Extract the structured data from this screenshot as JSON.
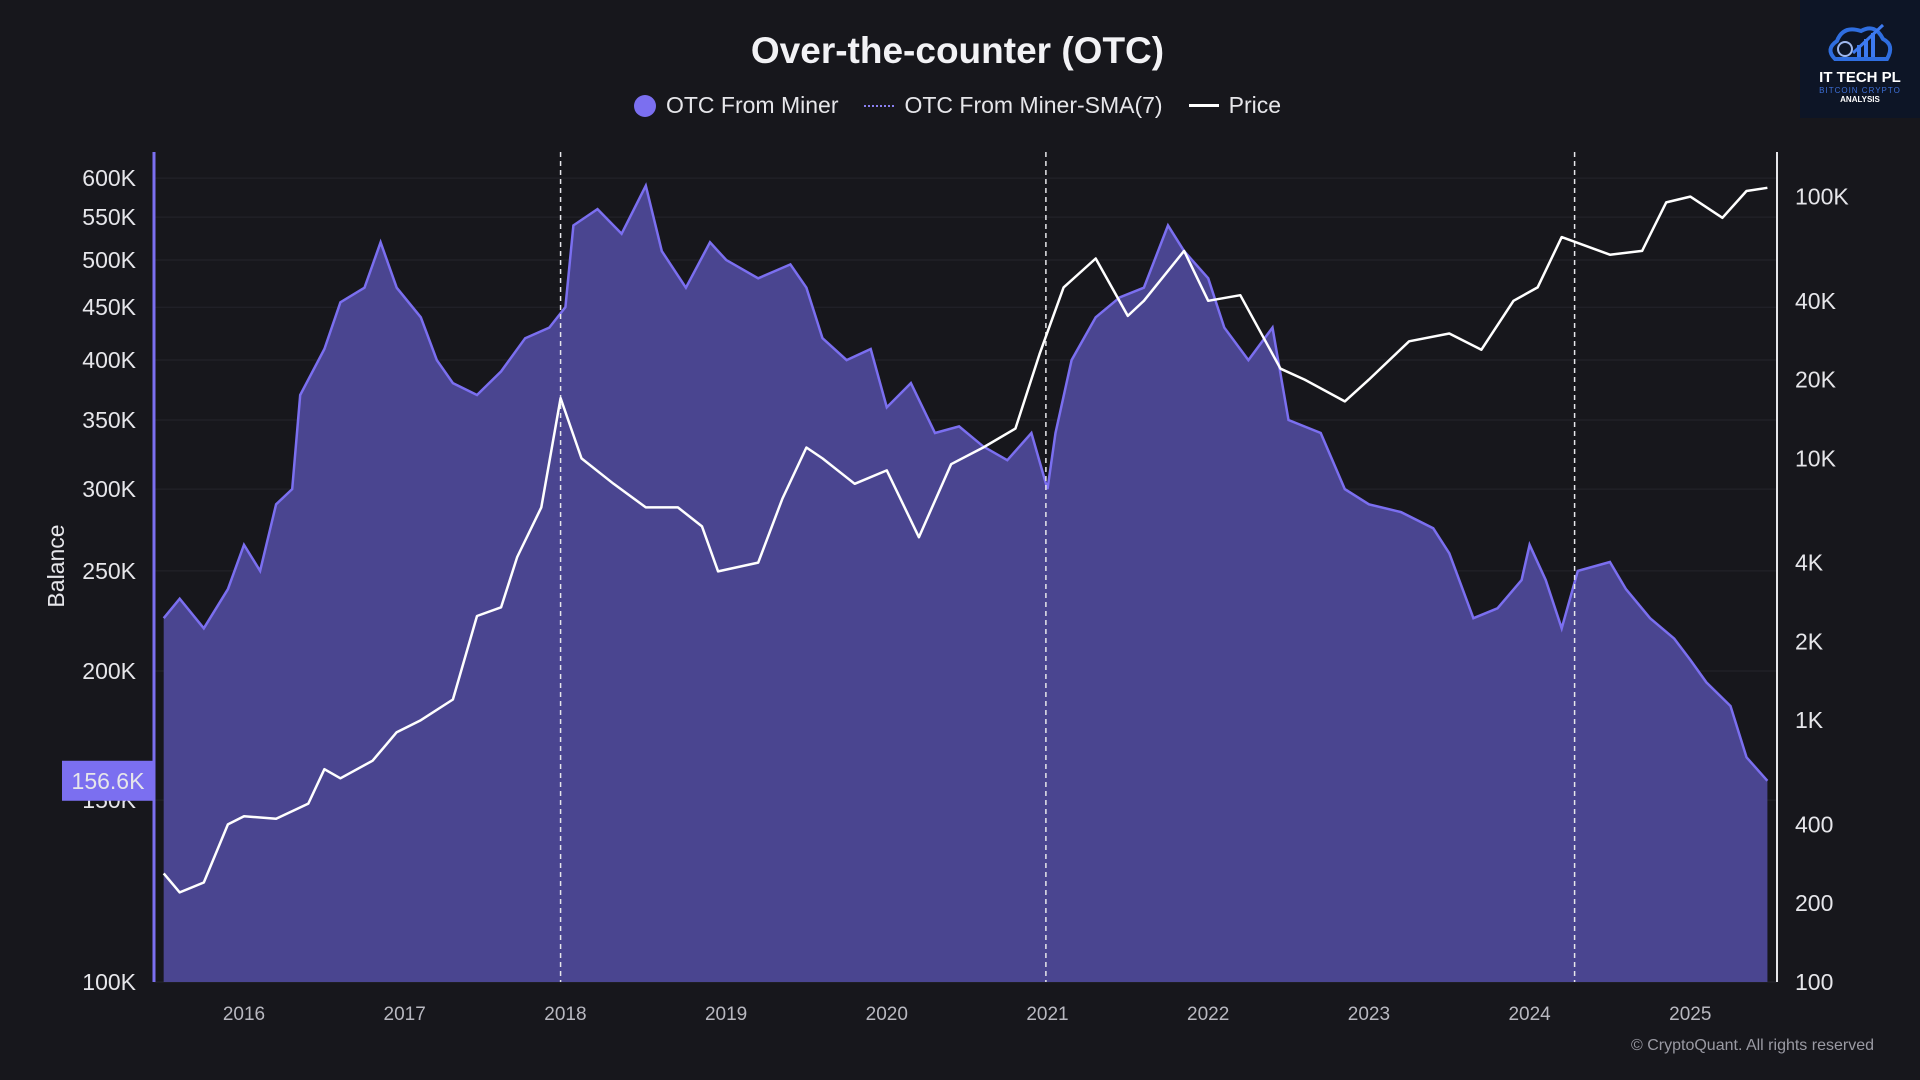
{
  "chart_data": {
    "type": "area",
    "title": "Over-the-counter (OTC)",
    "ylabel": "Balance",
    "y_scale": "log",
    "ylim": [
      100000,
      636000
    ],
    "y2_scale": "log",
    "y2lim": [
      100,
      148000
    ],
    "xlim": [
      2015.5,
      2025.48
    ],
    "x_ticks": [
      "2016",
      "2017",
      "2018",
      "2019",
      "2020",
      "2021",
      "2022",
      "2023",
      "2024",
      "2025"
    ],
    "y_ticks": [
      "600K",
      "550K",
      "500K",
      "450K",
      "400K",
      "350K",
      "300K",
      "250K",
      "200K",
      "150K",
      "100K"
    ],
    "y_tick_values": [
      600000,
      550000,
      500000,
      450000,
      400000,
      350000,
      300000,
      250000,
      200000,
      150000,
      100000
    ],
    "y2_ticks": [
      "100K",
      "40K",
      "20K",
      "10K",
      "4K",
      "2K",
      "1K",
      "400",
      "200",
      "100"
    ],
    "y2_tick_values": [
      100000,
      40000,
      20000,
      10000,
      4000,
      2000,
      1000,
      400,
      200,
      100
    ],
    "vertical_markers": [
      2017.97,
      2020.99,
      2024.28
    ],
    "current_value_label": "156.6K",
    "legend_position": "top-center",
    "grid": true,
    "series": [
      {
        "name": "OTC From Miner",
        "axis": "left",
        "color": "#7b6ff0",
        "fill": "#4a4590",
        "x": [
          2015.5,
          2015.6,
          2015.75,
          2015.9,
          2016.0,
          2016.1,
          2016.2,
          2016.3,
          2016.35,
          2016.5,
          2016.6,
          2016.75,
          2016.85,
          2016.95,
          2017.1,
          2017.2,
          2017.3,
          2017.45,
          2017.6,
          2017.75,
          2017.9,
          2018.0,
          2018.05,
          2018.2,
          2018.35,
          2018.5,
          2018.6,
          2018.75,
          2018.9,
          2019.0,
          2019.2,
          2019.4,
          2019.5,
          2019.6,
          2019.75,
          2019.9,
          2020.0,
          2020.15,
          2020.3,
          2020.45,
          2020.6,
          2020.75,
          2020.9,
          2021.0,
          2021.05,
          2021.15,
          2021.3,
          2021.45,
          2021.6,
          2021.75,
          2021.85,
          2022.0,
          2022.1,
          2022.25,
          2022.4,
          2022.5,
          2022.7,
          2022.85,
          2023.0,
          2023.2,
          2023.4,
          2023.5,
          2023.65,
          2023.8,
          2023.95,
          2024.0,
          2024.1,
          2024.2,
          2024.3,
          2024.5,
          2024.6,
          2024.75,
          2024.9,
          2025.0,
          2025.1,
          2025.25,
          2025.35,
          2025.48
        ],
        "values": [
          225000,
          235000,
          220000,
          240000,
          265000,
          250000,
          290000,
          300000,
          370000,
          410000,
          455000,
          470000,
          520000,
          470000,
          440000,
          400000,
          380000,
          370000,
          390000,
          420000,
          430000,
          450000,
          540000,
          560000,
          530000,
          590000,
          510000,
          470000,
          520000,
          500000,
          480000,
          495000,
          470000,
          420000,
          400000,
          410000,
          360000,
          380000,
          340000,
          345000,
          330000,
          320000,
          340000,
          300000,
          340000,
          400000,
          440000,
          460000,
          470000,
          540000,
          510000,
          480000,
          430000,
          400000,
          430000,
          350000,
          340000,
          300000,
          290000,
          285000,
          275000,
          260000,
          225000,
          230000,
          245000,
          265000,
          245000,
          220000,
          250000,
          255000,
          240000,
          225000,
          215000,
          205000,
          195000,
          185000,
          165000,
          156600
        ]
      },
      {
        "name": "OTC From Miner-SMA(7)",
        "axis": "left",
        "color": "#8a80f0",
        "values": []
      },
      {
        "name": "Price",
        "axis": "right",
        "color": "#ffffff",
        "x": [
          2015.5,
          2015.6,
          2015.75,
          2015.9,
          2016.0,
          2016.2,
          2016.4,
          2016.5,
          2016.6,
          2016.8,
          2016.95,
          2017.1,
          2017.3,
          2017.45,
          2017.6,
          2017.7,
          2017.85,
          2017.97,
          2018.1,
          2018.3,
          2018.5,
          2018.7,
          2018.85,
          2018.95,
          2019.2,
          2019.35,
          2019.5,
          2019.6,
          2019.8,
          2020.0,
          2020.2,
          2020.4,
          2020.6,
          2020.8,
          2020.95,
          2021.1,
          2021.3,
          2021.5,
          2021.6,
          2021.85,
          2022.0,
          2022.2,
          2022.45,
          2022.6,
          2022.85,
          2023.0,
          2023.25,
          2023.5,
          2023.7,
          2023.9,
          2024.05,
          2024.2,
          2024.5,
          2024.7,
          2024.85,
          2025.0,
          2025.2,
          2025.35,
          2025.48
        ],
        "values": [
          260,
          220,
          240,
          400,
          430,
          420,
          480,
          650,
          600,
          700,
          900,
          1000,
          1200,
          2500,
          2700,
          4200,
          6500,
          17000,
          10000,
          8000,
          6500,
          6500,
          5500,
          3700,
          4000,
          7000,
          11000,
          10000,
          8000,
          9000,
          5000,
          9500,
          11000,
          13000,
          25000,
          45000,
          58000,
          35000,
          40000,
          62000,
          40000,
          42000,
          22000,
          20000,
          16500,
          20000,
          28000,
          30000,
          26000,
          40000,
          45000,
          70000,
          60000,
          62000,
          95000,
          100000,
          83000,
          105000,
          108000
        ]
      }
    ]
  },
  "watermark": "CryptoQuant",
  "logo": {
    "line1": "IT TECH PL",
    "line2": "BITCOIN CRYPTO",
    "line3": "ANALYSIS"
  },
  "footer": "© CryptoQuant. All rights reserved"
}
